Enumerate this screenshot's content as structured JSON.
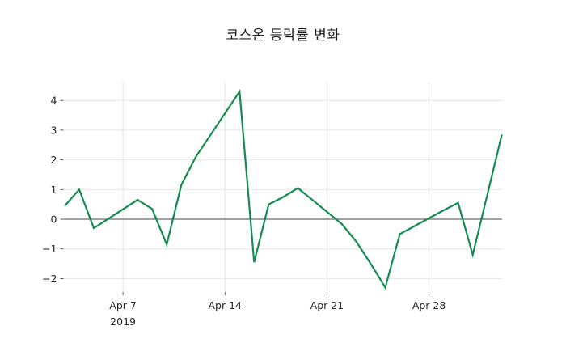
{
  "chart_data": {
    "type": "line",
    "title": "코스온 등락률 변화",
    "xlabel": "",
    "ylabel": "",
    "x_tick_labels": [
      "Apr 7",
      "Apr 14",
      "Apr 21",
      "Apr 28"
    ],
    "x_tick_sublabel": "2019",
    "x_tick_offsets": [
      4,
      11,
      18,
      25
    ],
    "y_ticks": [
      -2,
      -1,
      0,
      1,
      2,
      3,
      4
    ],
    "y_tick_labels": [
      "−2",
      "−1",
      "0",
      "1",
      "2",
      "3",
      "4"
    ],
    "xlim": [
      "Apr 3, 2019",
      "May 3, 2019"
    ],
    "ylim": [
      -2.45,
      4.6
    ],
    "grid": true,
    "legend": false,
    "zero_line": true,
    "colors": {
      "line": "#148c50",
      "grid": "#e6e6e6",
      "zero_line": "#444444",
      "tick": "#333333",
      "text": "#262626"
    },
    "series": [
      {
        "dates": [
          "Apr 3",
          "Apr 4",
          "Apr 5",
          "Apr 8",
          "Apr 9",
          "Apr 10",
          "Apr 11",
          "Apr 12",
          "Apr 15",
          "Apr 16",
          "Apr 17",
          "Apr 18",
          "Apr 19",
          "Apr 22",
          "Apr 23",
          "Apr 24",
          "Apr 25",
          "Apr 26",
          "Apr 29",
          "Apr 30",
          "May 1",
          "May 3"
        ],
        "day_offsets": [
          0,
          1,
          2,
          5,
          6,
          7,
          8,
          9,
          12,
          13,
          14,
          15,
          16,
          19,
          20,
          21,
          22,
          23,
          26,
          27,
          28,
          30
        ],
        "values": [
          0.45,
          1.0,
          -0.3,
          0.65,
          0.35,
          -0.85,
          1.15,
          2.1,
          4.3,
          -1.45,
          0.5,
          0.75,
          1.05,
          -0.15,
          -0.75,
          -1.5,
          -2.3,
          -0.5,
          0.3,
          0.55,
          -1.2,
          2.85
        ]
      }
    ]
  }
}
